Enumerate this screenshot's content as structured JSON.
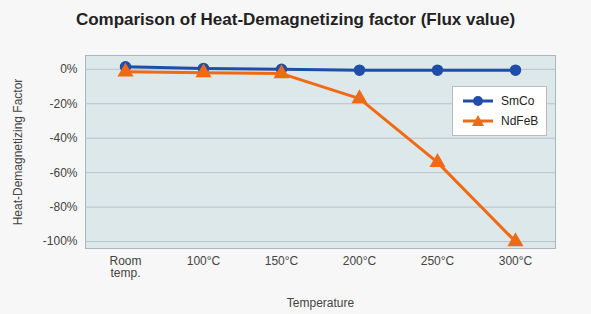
{
  "chart_data": {
    "type": "line",
    "title": "Comparison of Heat-Demagnetizing factor (Flux value)",
    "x_label": "Temperature",
    "y_label": "Heat-Demagnetizing Factor",
    "categories": [
      "Room temp.",
      "100°C",
      "150°C",
      "200°C",
      "250°C",
      "300°C"
    ],
    "series": [
      {
        "name": "SmCo",
        "color": "#1f4ea8",
        "marker": "circle",
        "values": [
          1.5,
          0.5,
          0,
          -0.5,
          -0.5,
          -0.5
        ]
      },
      {
        "name": "NdFeB",
        "color": "#f06a13",
        "marker": "triangle",
        "values": [
          -1.5,
          -2,
          -2.5,
          -17,
          -54,
          -100
        ]
      }
    ],
    "ylim": [
      -104,
      8
    ],
    "yticks": [
      {
        "value": 0,
        "label": "0%"
      },
      {
        "value": -20,
        "label": "-20%"
      },
      {
        "value": -40,
        "label": "-40%"
      },
      {
        "value": -60,
        "label": "-60%"
      },
      {
        "value": -80,
        "label": "-80%"
      },
      {
        "value": -100,
        "label": "-100%"
      }
    ],
    "grid": true,
    "legend": "top-right"
  }
}
